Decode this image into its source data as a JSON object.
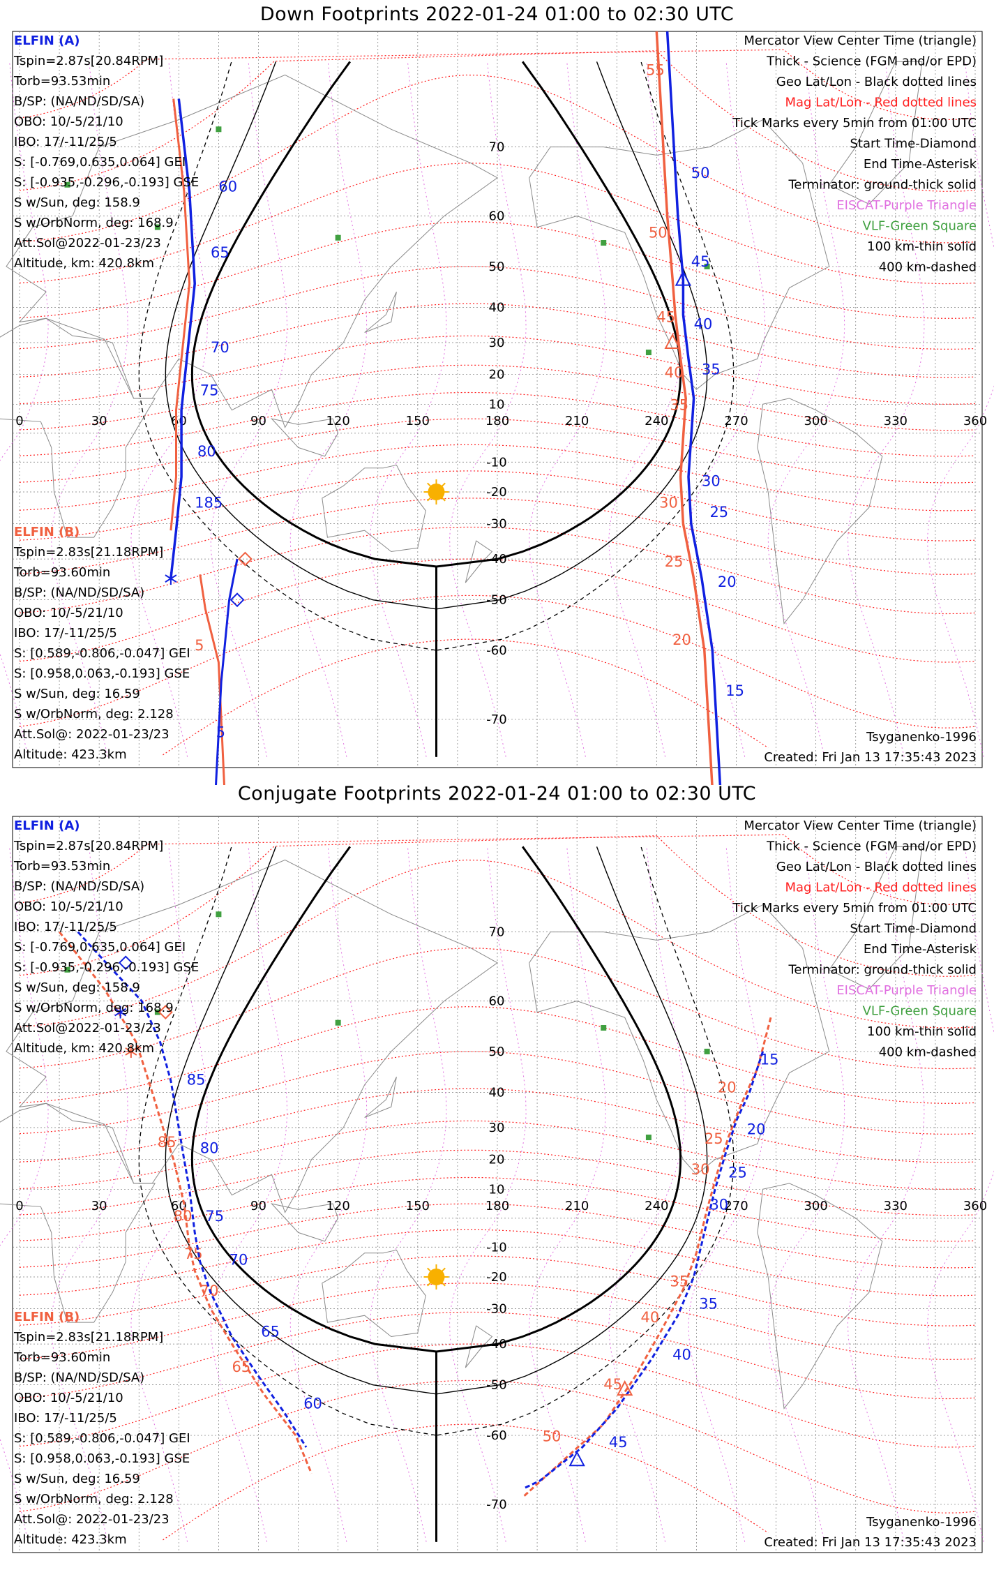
{
  "colors": {
    "elfin_a": "#1020e0",
    "elfin_b": "#f06040",
    "mag_lines": "#ff2020",
    "geo_lines": "#000000",
    "eiscat": "#e070e0",
    "vlf": "#40a040",
    "sun": "#f8b000"
  },
  "panels": [
    {
      "id": "down",
      "title": "Down Footprints 2022-01-24 01:00 to 02:30 UTC",
      "elfin_a": {
        "label": "ELFIN (A)",
        "info": [
          "Tspin=2.87s[20.84RPM]",
          "Torb=93.53min",
          "B/SP: (NA/ND/SD/SA)",
          "OBO: 10/-5/21/10",
          "IBO: 17/-11/25/5",
          "S: [-0.769,0.635,0.064] GEI",
          "S: [-0.935,-0.296,-0.193] GSE",
          "S w/Sun, deg: 158.9",
          "S w/OrbNorm, deg: 168.9",
          "Att.Sol@2022-01-23/23",
          "Altitude, km: 420.8km"
        ]
      },
      "elfin_b": {
        "label": "ELFIN (B)",
        "info": [
          "Tspin=2.83s[21.18RPM]",
          "Torb=93.60min",
          "B/SP: (NA/ND/SD/SA)",
          "OBO: 10/-5/21/10",
          "IBO: 17/-11/25/5",
          "S: [0.589,-0.806,-0.047] GEI",
          "S: [0.958,0.063,-0.193] GSE",
          "S w/Sun, deg: 16.59",
          "S w/OrbNorm, deg: 2.128",
          "Att.Sol@: 2022-01-23/23",
          "Altitude: 423.3km"
        ]
      },
      "legend": [
        "Mercator View Center Time (triangle)",
        "Thick - Science (FGM and/or EPD)",
        "Geo Lat/Lon - Black dotted lines",
        "Mag Lat/Lon - Red dotted lines",
        "Tick Marks every 5min from 01:00 UTC",
        "Start Time-Diamond",
        "End Time-Asterisk",
        "Terminator: ground-thick solid",
        "EISCAT-Purple Triangle",
        "VLF-Green Square",
        "100 km-thin solid",
        "400 km-dashed"
      ],
      "credit": "Tsyganenko-1996",
      "created": "Created: Fri Jan 13 17:35:43 2023"
    },
    {
      "id": "conjugate",
      "title": "Conjugate Footprints 2022-01-24 01:00 to 02:30 UTC",
      "elfin_a": {
        "label": "ELFIN (A)",
        "info": [
          "Tspin=2.87s[20.84RPM]",
          "Torb=93.53min",
          "B/SP: (NA/ND/SD/SA)",
          "OBO: 10/-5/21/10",
          "IBO: 17/-11/25/5",
          "S: [-0.769,0.635,0.064] GEI",
          "S: [-0.935,-0.296,-0.193] GSE",
          "S w/Sun, deg: 158.9",
          "S w/OrbNorm, deg: 168.9",
          "Att.Sol@2022-01-23/23",
          "Altitude, km: 420.8km"
        ]
      },
      "elfin_b": {
        "label": "ELFIN (B)",
        "info": [
          "Tspin=2.83s[21.18RPM]",
          "Torb=93.60min",
          "B/SP: (NA/ND/SD/SA)",
          "OBO: 10/-5/21/10",
          "IBO: 17/-11/25/5",
          "S: [0.589,-0.806,-0.047] GEI",
          "S: [0.958,0.063,-0.193] GSE",
          "S w/Sun, deg: 16.59",
          "S w/OrbNorm, deg: 2.128",
          "Att.Sol@: 2022-01-23/23",
          "Altitude: 423.3km"
        ]
      },
      "legend": [
        "Mercator View Center Time (triangle)",
        "Thick - Science (FGM and/or EPD)",
        "Geo Lat/Lon - Black dotted lines",
        "Mag Lat/Lon - Red dotted lines",
        "Tick Marks every 5min from 01:00 UTC",
        "Start Time-Diamond",
        "End Time-Asterisk",
        "Terminator: ground-thick solid",
        "EISCAT-Purple Triangle",
        "VLF-Green Square",
        "100 km-thin solid",
        "400 km-dashed"
      ],
      "credit": "Tsyganenko-1996",
      "created": "Created: Fri Jan 13 17:35:43 2023"
    }
  ],
  "map_axes": {
    "lon_ticks": [
      "0",
      "30",
      "60",
      "90",
      "120",
      "150",
      "180",
      "210",
      "240",
      "270",
      "300",
      "330",
      "360"
    ],
    "lat_ticks": [
      "70",
      "60",
      "50",
      "40",
      "30",
      "20",
      "10",
      "-10",
      "-20",
      "-30",
      "-40",
      "-50",
      "-60",
      "-70"
    ],
    "lat_min": -75,
    "lat_max": 80
  },
  "down_tracks": {
    "a_west": {
      "pts": [
        [
          60,
          75
        ],
        [
          64,
          64
        ],
        [
          66,
          46
        ],
        [
          63,
          25
        ],
        [
          61,
          8
        ],
        [
          61,
          -15
        ],
        [
          59,
          -32
        ],
        [
          57,
          -45
        ]
      ],
      "ticks": [
        [
          "60",
          [
            75,
            64
          ]
        ],
        [
          "65",
          [
            72,
            52
          ]
        ],
        [
          "70",
          [
            72,
            27
          ]
        ],
        [
          "75",
          [
            68,
            13
          ]
        ],
        [
          "80",
          [
            67,
            -8
          ]
        ],
        [
          "185",
          [
            66,
            -25
          ]
        ]
      ]
    },
    "b_west": {
      "pts": [
        [
          68,
          -44
        ],
        [
          70,
          -52
        ],
        [
          75,
          -62
        ],
        [
          78,
          -80
        ]
      ],
      "ticks": [
        [
          "5",
          [
            66,
            -60
          ]
        ]
      ]
    },
    "b_west2": {
      "pts": [
        [
          82,
          -40
        ],
        [
          79,
          -50
        ],
        [
          76,
          -65
        ],
        [
          73,
          -80
        ]
      ],
      "ticks": [
        [
          "5",
          [
            74,
            -72
          ]
        ]
      ]
    },
    "a_east": {
      "pts": [
        [
          244,
          80
        ],
        [
          248,
          60
        ],
        [
          250,
          47
        ],
        [
          250,
          38
        ],
        [
          252,
          25
        ],
        [
          254,
          12
        ],
        [
          252,
          -15
        ],
        [
          253,
          -30
        ],
        [
          257,
          -45
        ],
        [
          261,
          -60
        ],
        [
          265,
          -80
        ]
      ],
      "ticks": [
        [
          "50",
          [
            253,
            66
          ]
        ],
        [
          "45",
          [
            253,
            50
          ]
        ],
        [
          "40",
          [
            254,
            34
          ]
        ],
        [
          "35",
          [
            257,
            20
          ]
        ],
        [
          "30",
          [
            257,
            -18
          ]
        ],
        [
          "25",
          [
            260,
            -28
          ]
        ],
        [
          "20",
          [
            263,
            -47
          ]
        ],
        [
          "15",
          [
            266,
            -67
          ]
        ]
      ]
    },
    "b_east": {
      "pts": [
        [
          240,
          80
        ],
        [
          244,
          60
        ],
        [
          246,
          47
        ],
        [
          247,
          38
        ],
        [
          249,
          25
        ],
        [
          251,
          12
        ],
        [
          249,
          -15
        ],
        [
          250,
          -30
        ],
        [
          254,
          -45
        ],
        [
          258,
          -60
        ],
        [
          262,
          -80
        ]
      ],
      "ticks": [
        [
          "55",
          [
            236,
            77
          ]
        ],
        [
          "50",
          [
            237,
            56
          ]
        ],
        [
          "45",
          [
            240,
            36
          ]
        ],
        [
          "40",
          [
            243,
            19
          ]
        ],
        [
          "35",
          [
            245,
            8
          ]
        ],
        [
          "30",
          [
            241,
            -25
          ]
        ],
        [
          "25",
          [
            243,
            -42
          ]
        ],
        [
          "20",
          [
            246,
            -59
          ]
        ]
      ]
    }
  },
  "conj_tracks": {
    "a_west": {
      "pts": [
        [
          22,
          70
        ],
        [
          35,
          65
        ],
        [
          46,
          60
        ],
        [
          53,
          52
        ],
        [
          57,
          43
        ],
        [
          60,
          30
        ],
        [
          62,
          20
        ],
        [
          64,
          10
        ],
        [
          66,
          -5
        ],
        [
          68,
          -15
        ],
        [
          72,
          -25
        ],
        [
          80,
          -38
        ],
        [
          90,
          -48
        ],
        [
          100,
          -56
        ],
        [
          108,
          -62
        ]
      ],
      "ticks": [
        [
          "85",
          [
            63,
            42
          ]
        ],
        [
          "80",
          [
            68,
            22
          ]
        ],
        [
          "75",
          [
            70,
            -1
          ]
        ],
        [
          "70",
          [
            79,
            -16
          ]
        ],
        [
          "65",
          [
            91,
            -38
          ]
        ],
        [
          "60",
          [
            107,
            -55
          ]
        ]
      ]
    },
    "b_west": {
      "pts": [
        [
          15,
          70
        ],
        [
          32,
          62
        ],
        [
          44,
          52
        ],
        [
          50,
          40
        ],
        [
          54,
          30
        ],
        [
          58,
          20
        ],
        [
          62,
          5
        ],
        [
          64,
          -10
        ],
        [
          66,
          -18
        ],
        [
          72,
          -30
        ],
        [
          80,
          -40
        ],
        [
          92,
          -52
        ],
        [
          104,
          -60
        ],
        [
          110,
          -66
        ]
      ],
      "ticks": [
        [
          "85",
          [
            52,
            24
          ]
        ],
        [
          "80",
          [
            58,
            -1
          ]
        ],
        [
          "75",
          [
            62,
            -14
          ]
        ],
        [
          "70",
          [
            68,
            -26
          ]
        ],
        [
          "65",
          [
            80,
            -47
          ]
        ]
      ]
    },
    "a_east": {
      "pts": [
        [
          280,
          50
        ],
        [
          275,
          40
        ],
        [
          270,
          32
        ],
        [
          266,
          22
        ],
        [
          262,
          10
        ],
        [
          258,
          -5
        ],
        [
          254,
          -20
        ],
        [
          248,
          -32
        ],
        [
          238,
          -44
        ],
        [
          225,
          -55
        ],
        [
          212,
          -62
        ],
        [
          196,
          -67
        ],
        [
          190,
          -68
        ]
      ],
      "ticks": [
        [
          "15",
          [
            279,
            47
          ]
        ],
        [
          "20",
          [
            274,
            28
          ]
        ],
        [
          "25",
          [
            267,
            14
          ]
        ],
        [
          "30",
          [
            260,
            3
          ]
        ],
        [
          "35",
          [
            256,
            -30
          ]
        ],
        [
          "40",
          [
            246,
            -44
          ]
        ],
        [
          "45",
          [
            222,
            -62
          ]
        ]
      ]
    },
    "b_east": {
      "pts": [
        [
          283,
          57
        ],
        [
          278,
          46
        ],
        [
          272,
          37
        ],
        [
          267,
          27
        ],
        [
          263,
          16
        ],
        [
          259,
          3
        ],
        [
          255,
          -12
        ],
        [
          250,
          -24
        ],
        [
          242,
          -36
        ],
        [
          232,
          -48
        ],
        [
          220,
          -58
        ],
        [
          205,
          -64
        ],
        [
          190,
          -69
        ]
      ],
      "ticks": [
        [
          "20",
          [
            263,
            40
          ]
        ],
        [
          "25",
          [
            258,
            25
          ]
        ],
        [
          "30",
          [
            253,
            15
          ]
        ],
        [
          "35",
          [
            245,
            -23
          ]
        ],
        [
          "40",
          [
            234,
            -34
          ]
        ],
        [
          "45",
          [
            220,
            -51
          ]
        ],
        [
          "50",
          [
            197,
            -61
          ]
        ]
      ]
    }
  }
}
